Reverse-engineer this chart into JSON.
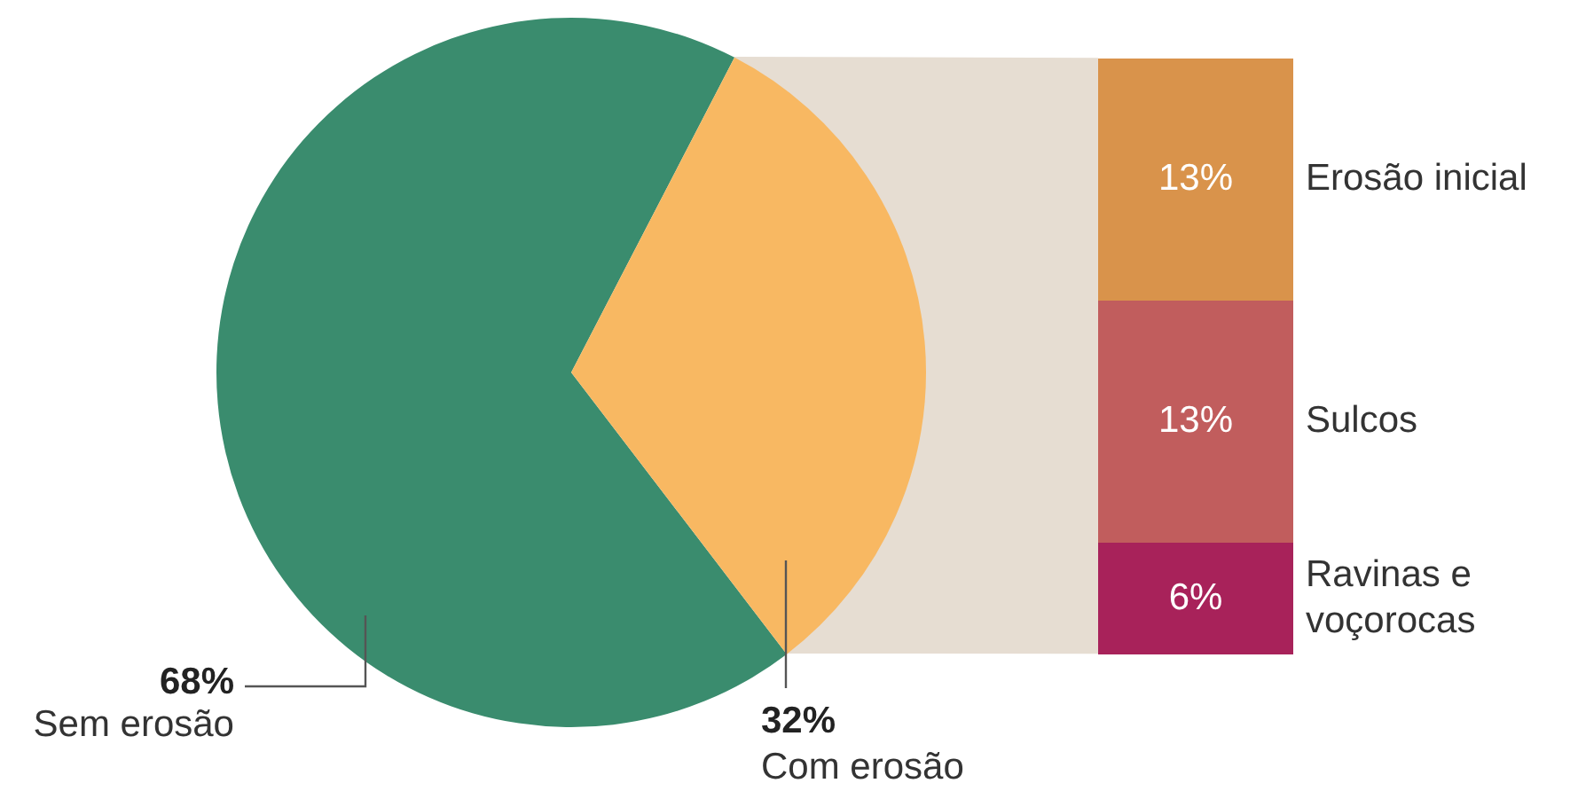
{
  "chart_data": [
    {
      "type": "pie",
      "categories": [
        "Sem erosão",
        "Com erosão"
      ],
      "values": [
        68,
        32
      ],
      "colors": [
        "#3a8c6e",
        "#f8b862"
      ],
      "value_labels": [
        "68%",
        "32%"
      ]
    },
    {
      "type": "bar",
      "stacked": true,
      "categories": [
        null
      ],
      "series": [
        {
          "name": "Ravinas e voçorocas",
          "color": "#a8225a",
          "values": [
            6
          ],
          "value_labels": [
            "6%"
          ]
        },
        {
          "name": "Sulcos",
          "color": "#c15d5d",
          "values": [
            13
          ],
          "value_labels": [
            "13%"
          ]
        },
        {
          "name": "Erosão inicial",
          "color": "#d9934b",
          "values": [
            13
          ],
          "value_labels": [
            "13%"
          ]
        }
      ]
    }
  ]
}
